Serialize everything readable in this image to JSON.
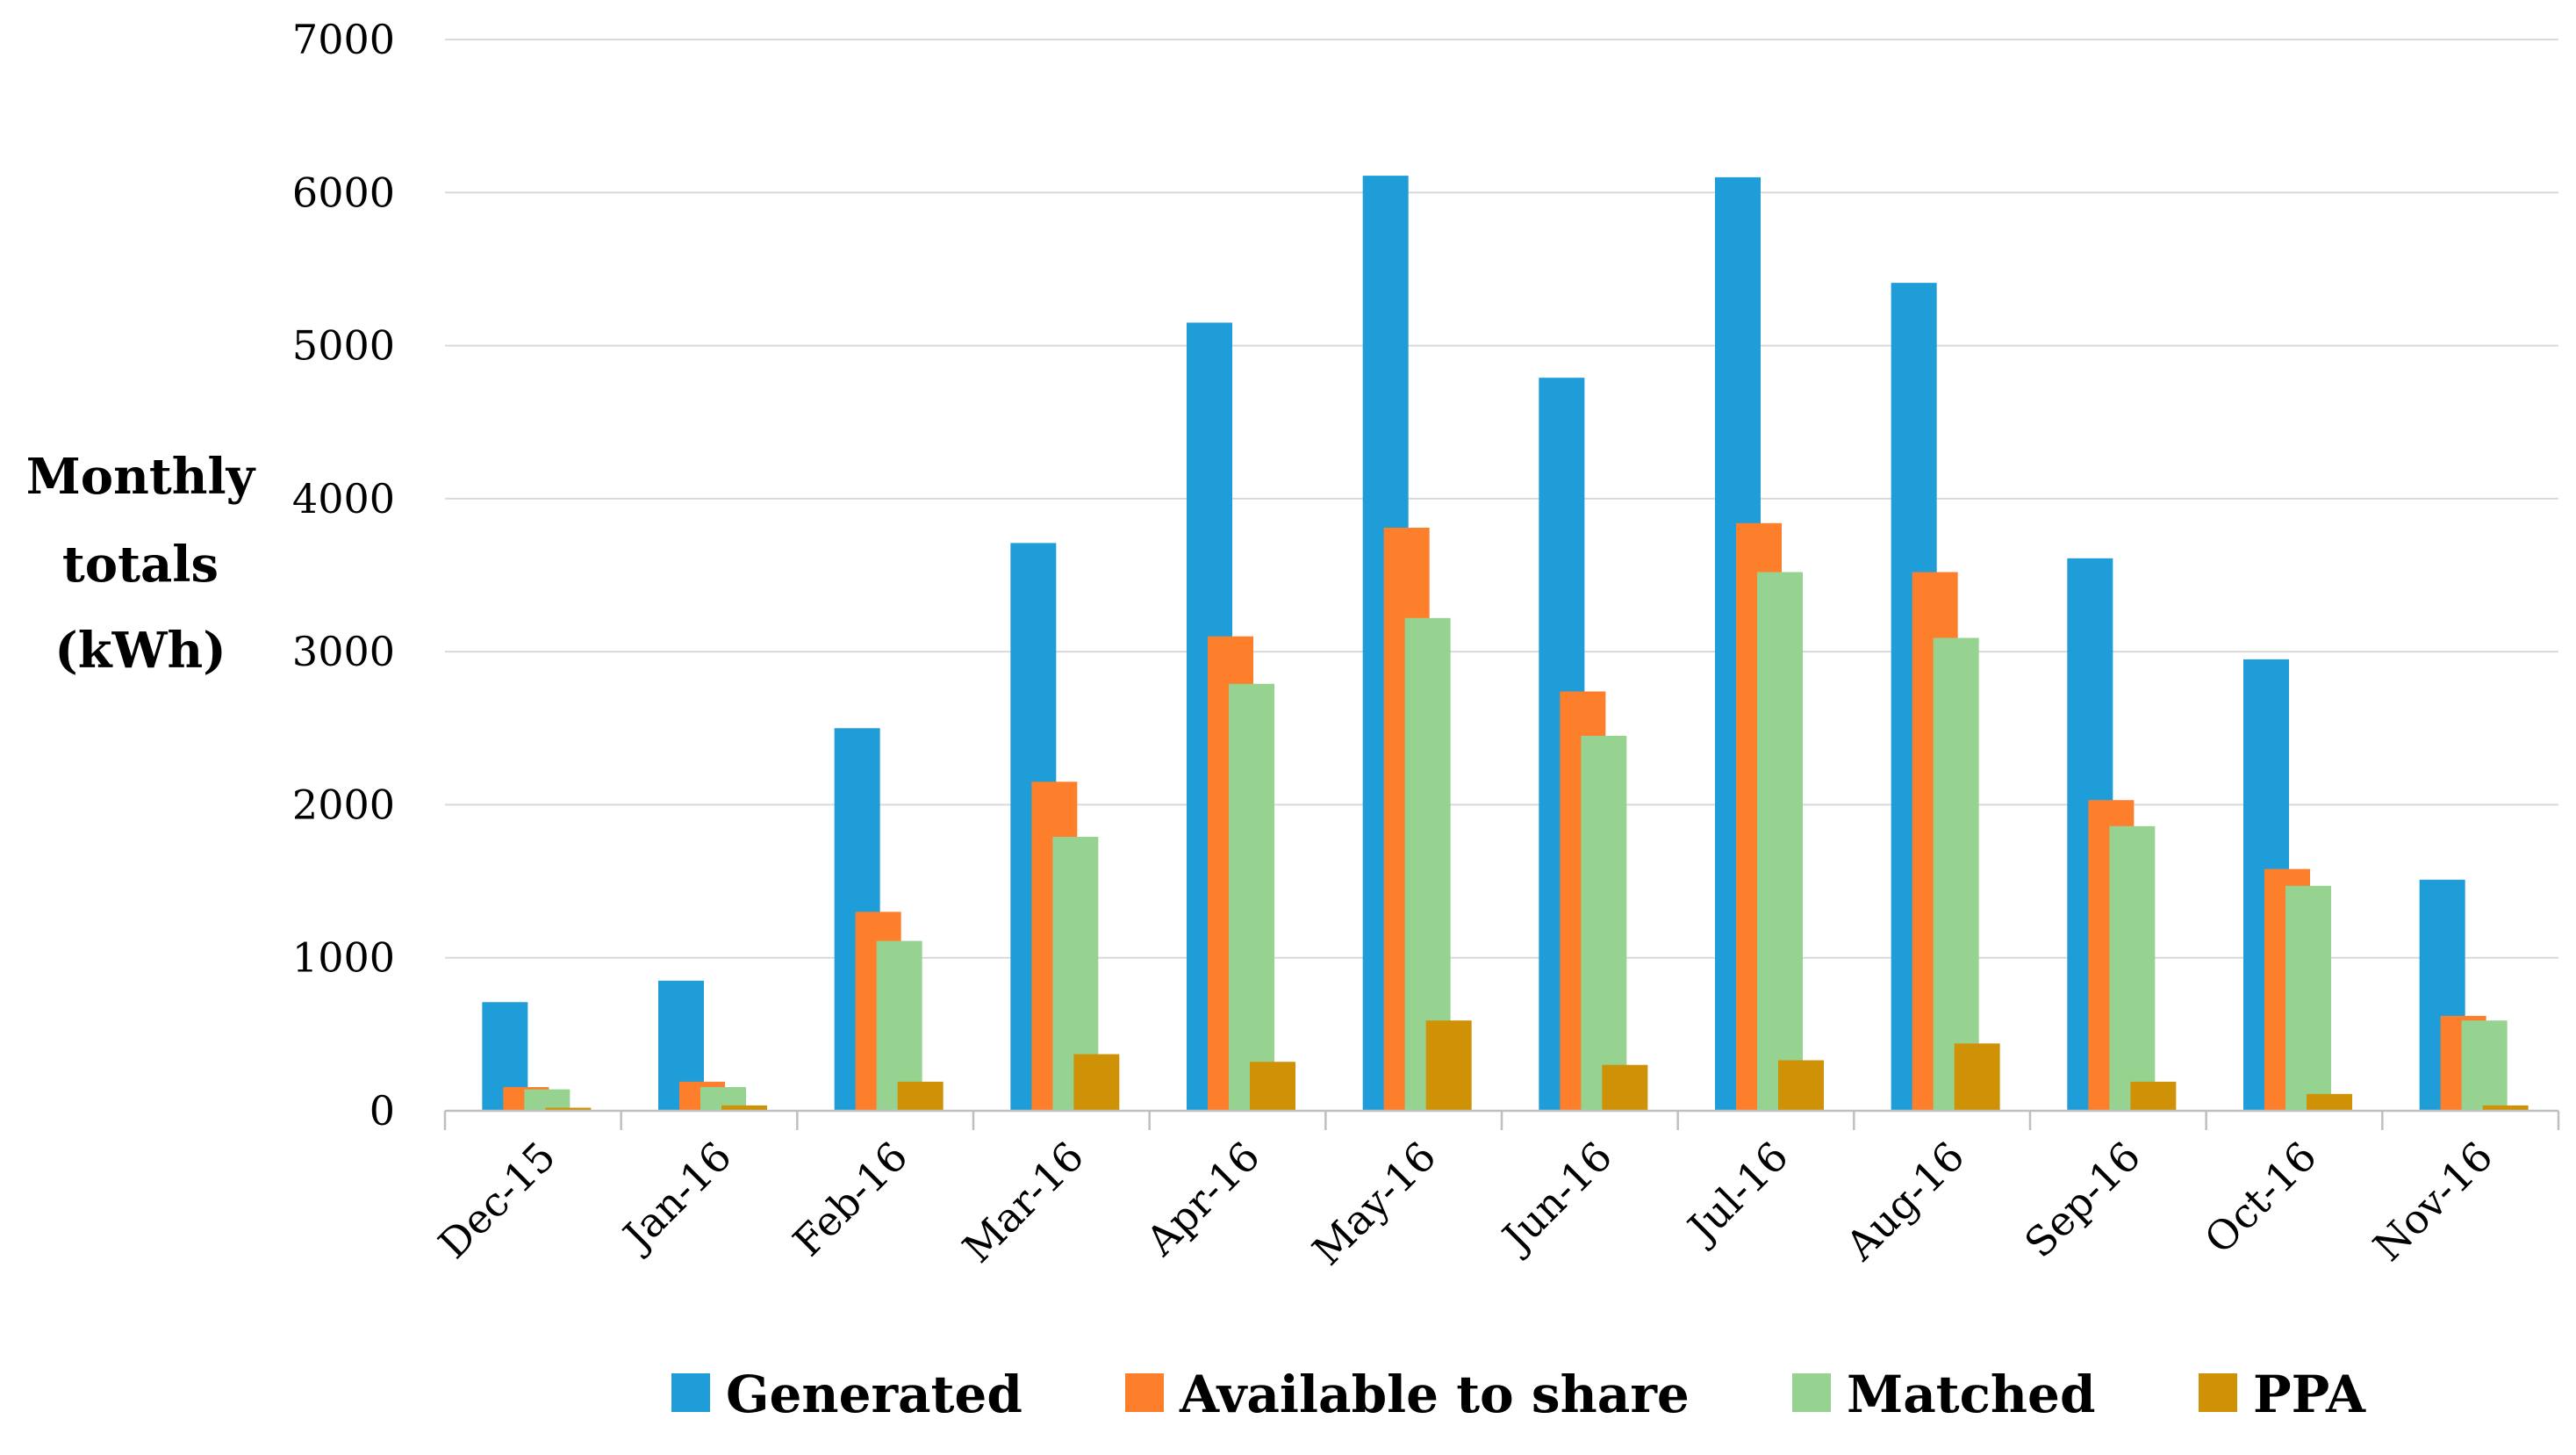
{
  "chart_data": {
    "type": "bar",
    "title": "",
    "xlabel": "",
    "ylabel": "Monthly totals (kWh)",
    "ylabel_lines": [
      "Monthly",
      "totals",
      "(kWh)"
    ],
    "ylim": [
      0,
      7000
    ],
    "yticks": [
      0,
      1000,
      2000,
      3000,
      4000,
      5000,
      6000,
      7000
    ],
    "grid": true,
    "legend_position": "bottom",
    "categories": [
      "Dec-15",
      "Jan-16",
      "Feb-16",
      "Mar-16",
      "Apr-16",
      "May-16",
      "Jun-16",
      "Jul-16",
      "Aug-16",
      "Sep-16",
      "Oct-16",
      "Nov-16"
    ],
    "series": [
      {
        "name": "Generated",
        "color": "#1f9dd9",
        "values": [
          710,
          850,
          2500,
          3710,
          5150,
          6110,
          4790,
          6100,
          5410,
          3610,
          2950,
          1510
        ]
      },
      {
        "name": "Available to share",
        "color": "#fd7f2b",
        "values": [
          155,
          190,
          1300,
          2150,
          3100,
          3810,
          2740,
          3840,
          3520,
          2030,
          1580,
          620
        ]
      },
      {
        "name": "Matched",
        "color": "#96d390",
        "values": [
          140,
          155,
          1110,
          1790,
          2790,
          3220,
          2450,
          3520,
          3090,
          1860,
          1470,
          590
        ]
      },
      {
        "name": "PPA",
        "color": "#cf9207",
        "values": [
          20,
          35,
          190,
          370,
          320,
          590,
          300,
          330,
          440,
          190,
          110,
          35
        ]
      }
    ]
  }
}
